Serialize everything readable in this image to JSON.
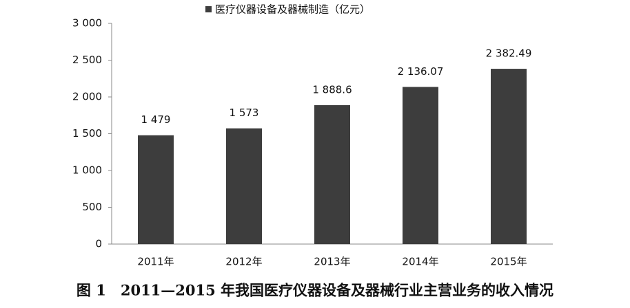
{
  "chart_data": {
    "type": "bar",
    "title": "图 1　2011—2015 年我国医疗仪器设备及器械行业主营业务的收入情况",
    "categories": [
      "2011年",
      "2012年",
      "2013年",
      "2014年",
      "2015年"
    ],
    "series": [
      {
        "name": "医疗仪器设备及器械制造（亿元）",
        "color": "#3d3d3d",
        "values": [
          1479,
          1573,
          1888.6,
          2136.07,
          2382.49
        ],
        "value_labels": [
          "1 479",
          "1 573",
          "1 888.6",
          "2 136.07",
          "2 382.49"
        ]
      }
    ],
    "ylim": [
      0,
      3000
    ],
    "yticks": [
      0,
      500,
      {
        "value": 1000,
        "label": "1 000"
      },
      {
        "value": 1500,
        "label": "1 500"
      },
      {
        "value": 2000,
        "label": "2 000"
      },
      {
        "value": 2500,
        "label": "2 500"
      },
      {
        "value": 3000,
        "label": "3 000"
      }
    ],
    "grid": false,
    "legend": "top"
  }
}
